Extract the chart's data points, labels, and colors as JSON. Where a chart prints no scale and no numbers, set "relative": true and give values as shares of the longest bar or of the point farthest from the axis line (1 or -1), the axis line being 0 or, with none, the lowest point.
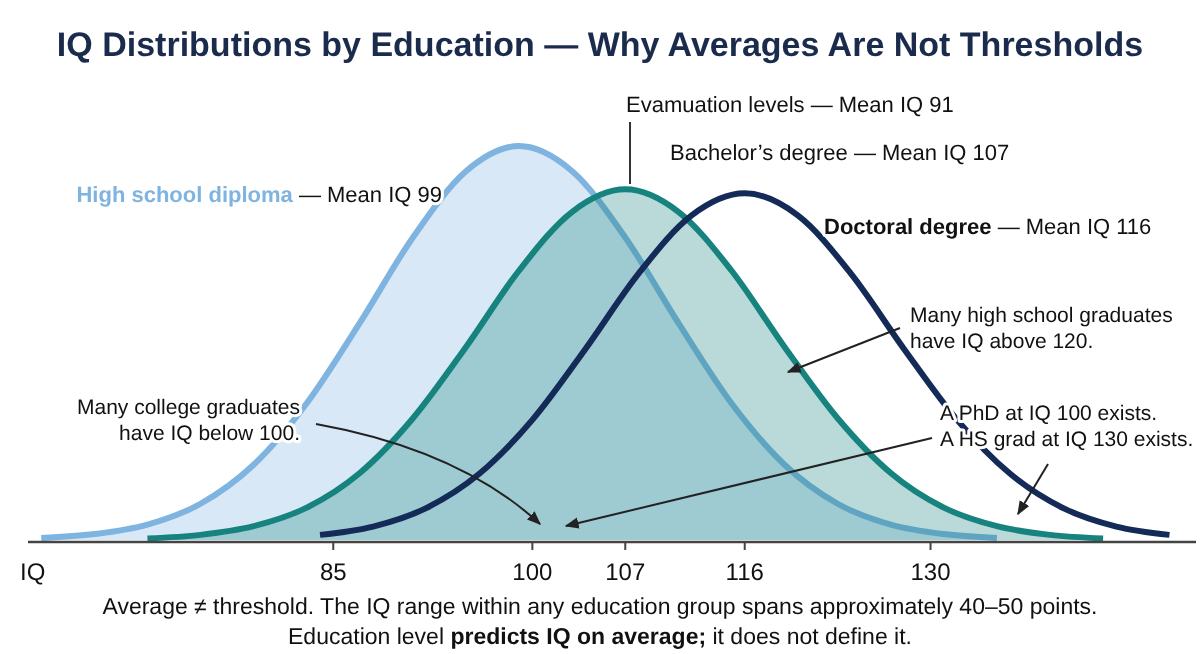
{
  "chart_data": {
    "type": "area",
    "title": "IQ Distributions by Education — Why Averages Are Not Thresholds",
    "xlabel": "IQ",
    "relative": true,
    "legend": false,
    "grid": false,
    "xlim": [
      62,
      150
    ],
    "xticks": [
      85,
      100,
      107,
      116,
      130
    ],
    "series": [
      {
        "name": "High school diploma",
        "type": "area",
        "color": "#7fb3e0",
        "x": [
          63,
          67,
          71,
          75,
          79,
          83,
          87,
          91,
          95,
          99,
          103,
          107,
          111,
          115,
          119,
          123,
          127,
          131,
          135
        ],
        "values": [
          0.005,
          0.015,
          0.039,
          0.092,
          0.191,
          0.347,
          0.551,
          0.768,
          0.936,
          1,
          0.936,
          0.768,
          0.551,
          0.347,
          0.191,
          0.092,
          0.039,
          0.015,
          0.005
        ]
      },
      {
        "name": "Bachelor’s degree",
        "type": "area",
        "color": "#17837f",
        "x": [
          71,
          75,
          79,
          83,
          87,
          91,
          95,
          99,
          103,
          107,
          111,
          115,
          119,
          123,
          127,
          131,
          135,
          139,
          143
        ],
        "values": [
          0.004,
          0.013,
          0.035,
          0.082,
          0.17,
          0.309,
          0.49,
          0.684,
          0.833,
          0.89,
          0.833,
          0.684,
          0.49,
          0.309,
          0.17,
          0.082,
          0.035,
          0.013,
          0.004
        ]
      },
      {
        "name": "Doctoral degree",
        "type": "line",
        "color": "#142a57",
        "x": [
          84,
          88,
          92,
          96,
          100,
          104,
          108,
          112,
          116,
          120,
          124,
          128,
          132,
          136,
          140,
          144,
          148
        ],
        "values": [
          0.013,
          0.034,
          0.081,
          0.168,
          0.305,
          0.485,
          0.676,
          0.824,
          0.88,
          0.824,
          0.676,
          0.485,
          0.305,
          0.168,
          0.081,
          0.034,
          0.013
        ]
      }
    ],
    "annotations": [
      "Evamuation levels — Mean IQ 91",
      "— Mean IQ 99",
      "— Mean IQ 107",
      "— Mean IQ 116",
      "Many high school graduates\nhave IQ above 120.",
      "Many college graduates\nhave IQ below 100.",
      "A PhD at IQ 100 exists.\nA HS grad at IQ 130 exists.",
      "Average ≠ threshold. The IQ range within any education group spans approximately 40–50 points.",
      "Education level ",
      "predicts IQ on average;",
      " it does not define it."
    ]
  }
}
